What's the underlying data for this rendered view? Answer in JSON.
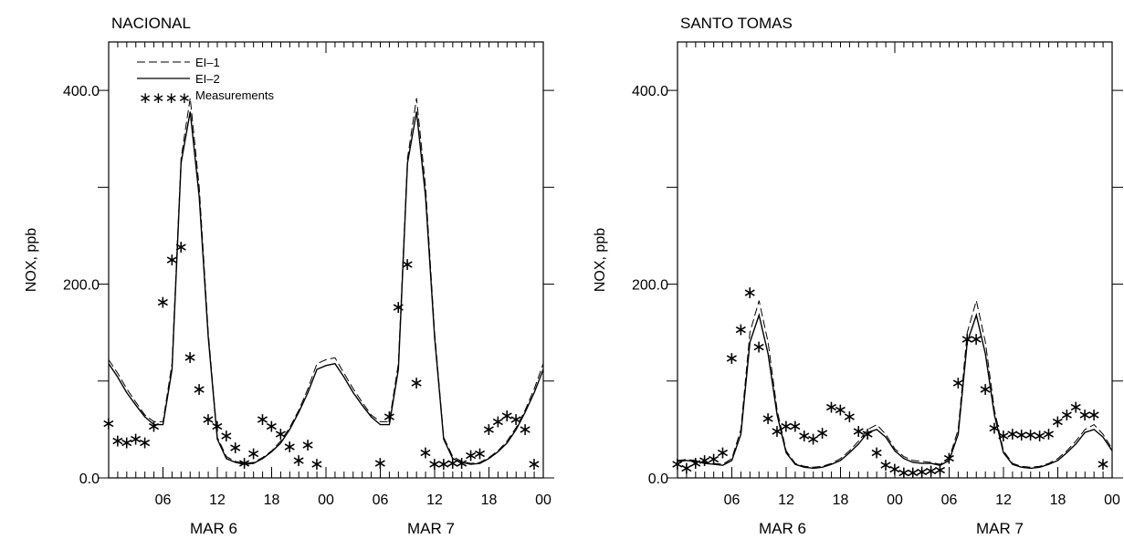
{
  "chart_data": [
    {
      "type": "line",
      "title": "NACIONAL",
      "ylabel": "NOX, ppb",
      "xlabel": "",
      "ylim": [
        0,
        450
      ],
      "yticks": [
        0,
        200,
        400
      ],
      "ytick_labels": [
        "0.0",
        "200.0",
        "400.0"
      ],
      "xlim": [
        0,
        48
      ],
      "xtick_positions": [
        6,
        12,
        18,
        24,
        30,
        36,
        42,
        48
      ],
      "xtick_labels": [
        "06",
        "12",
        "18",
        "00",
        "06",
        "12",
        "18",
        "00"
      ],
      "day_labels": [
        {
          "x": 12,
          "text": "MAR  6"
        },
        {
          "x": 36,
          "text": "MAR  7"
        }
      ],
      "legend": {
        "position": "top-left",
        "entries": [
          "EI–1",
          "EI–2",
          "Measurements"
        ],
        "marker_text": "∗∗∗∗"
      },
      "series": [
        {
          "name": "EI–1",
          "style": "dashed",
          "x": [
            0,
            1,
            2,
            3,
            4,
            5,
            6,
            7,
            8,
            9,
            10,
            11,
            12,
            13,
            14,
            15,
            16,
            17,
            18,
            19,
            20,
            21,
            22,
            23,
            24,
            25,
            26,
            27,
            28,
            29,
            30,
            31,
            32,
            33,
            34,
            35,
            36,
            37,
            38,
            39,
            40,
            41,
            42,
            43,
            44,
            45,
            46,
            47,
            48
          ],
          "y": [
            122,
            108,
            92,
            78,
            65,
            58,
            58,
            118,
            330,
            392,
            300,
            150,
            42,
            22,
            17,
            15,
            16,
            21,
            28,
            38,
            52,
            70,
            92,
            118,
            122,
            124,
            108,
            92,
            78,
            65,
            58,
            58,
            118,
            330,
            392,
            300,
            150,
            42,
            22,
            17,
            15,
            16,
            21,
            28,
            38,
            52,
            70,
            92,
            118
          ]
        },
        {
          "name": "EI–2",
          "style": "solid",
          "x": [
            0,
            1,
            2,
            3,
            4,
            5,
            6,
            7,
            8,
            9,
            10,
            11,
            12,
            13,
            14,
            15,
            16,
            17,
            18,
            19,
            20,
            21,
            22,
            23,
            24,
            25,
            26,
            27,
            28,
            29,
            30,
            31,
            32,
            33,
            34,
            35,
            36,
            37,
            38,
            39,
            40,
            41,
            42,
            43,
            44,
            45,
            46,
            47,
            48
          ],
          "y": [
            118,
            104,
            88,
            75,
            63,
            55,
            55,
            112,
            325,
            378,
            290,
            145,
            40,
            20,
            16,
            14,
            15,
            20,
            27,
            36,
            50,
            68,
            88,
            112,
            116,
            118,
            104,
            88,
            75,
            63,
            55,
            55,
            112,
            325,
            378,
            290,
            145,
            40,
            20,
            16,
            14,
            15,
            20,
            27,
            36,
            50,
            68,
            88,
            112
          ]
        },
        {
          "name": "Measurements",
          "style": "markers",
          "x": [
            0,
            1,
            2,
            3,
            4,
            5,
            6,
            7,
            8,
            9,
            10,
            11,
            12,
            13,
            14,
            15,
            16,
            17,
            18,
            19,
            20,
            21,
            22,
            23,
            30,
            31,
            32,
            33,
            34,
            35,
            36,
            37,
            38,
            39,
            40,
            41,
            42,
            43,
            44,
            45,
            46,
            47
          ],
          "y": [
            58,
            40,
            38,
            42,
            38,
            55,
            183,
            227,
            240,
            126,
            93,
            62,
            55,
            45,
            33,
            17,
            27,
            62,
            55,
            47,
            34,
            20,
            36,
            16,
            17,
            65,
            178,
            222,
            100,
            28,
            16,
            16,
            17,
            17,
            25,
            27,
            52,
            60,
            66,
            62,
            52,
            16
          ]
        }
      ]
    },
    {
      "type": "line",
      "title": "SANTO TOMAS",
      "ylabel": "NOX, ppb",
      "xlabel": "",
      "ylim": [
        0,
        450
      ],
      "yticks": [
        0,
        200,
        400
      ],
      "ytick_labels": [
        "0.0",
        "200.0",
        "400.0"
      ],
      "xlim": [
        0,
        48
      ],
      "xtick_positions": [
        6,
        12,
        18,
        24,
        30,
        36,
        42,
        48
      ],
      "xtick_labels": [
        "06",
        "12",
        "18",
        "00",
        "06",
        "12",
        "18",
        "00"
      ],
      "day_labels": [
        {
          "x": 12,
          "text": "MAR  6"
        },
        {
          "x": 36,
          "text": "MAR  7"
        }
      ],
      "series": [
        {
          "name": "EI–1",
          "style": "dashed",
          "x": [
            0,
            1,
            2,
            3,
            4,
            5,
            6,
            7,
            8,
            9,
            10,
            11,
            12,
            13,
            14,
            15,
            16,
            17,
            18,
            19,
            20,
            21,
            22,
            23,
            24,
            25,
            26,
            27,
            28,
            29,
            30,
            31,
            32,
            33,
            34,
            35,
            36,
            37,
            38,
            39,
            40,
            41,
            42,
            43,
            44,
            45,
            46,
            47,
            48
          ],
          "y": [
            18,
            19,
            18,
            16,
            15,
            14,
            20,
            50,
            150,
            183,
            140,
            70,
            28,
            15,
            12,
            11,
            12,
            15,
            20,
            28,
            38,
            50,
            55,
            45,
            30,
            22,
            18,
            17,
            16,
            14,
            20,
            50,
            150,
            183,
            140,
            70,
            28,
            15,
            12,
            11,
            12,
            15,
            20,
            28,
            38,
            50,
            55,
            45,
            30
          ]
        },
        {
          "name": "EI–2",
          "style": "solid",
          "x": [
            0,
            1,
            2,
            3,
            4,
            5,
            6,
            7,
            8,
            9,
            10,
            11,
            12,
            13,
            14,
            15,
            16,
            17,
            18,
            19,
            20,
            21,
            22,
            23,
            24,
            25,
            26,
            27,
            28,
            29,
            30,
            31,
            32,
            33,
            34,
            35,
            36,
            37,
            38,
            39,
            40,
            41,
            42,
            43,
            44,
            45,
            46,
            47,
            48
          ],
          "y": [
            17,
            18,
            17,
            15,
            14,
            13,
            18,
            45,
            140,
            168,
            128,
            65,
            26,
            14,
            11,
            10,
            11,
            14,
            18,
            26,
            35,
            47,
            50,
            42,
            28,
            20,
            16,
            15,
            15,
            13,
            18,
            45,
            140,
            168,
            128,
            65,
            26,
            14,
            11,
            10,
            11,
            14,
            18,
            26,
            35,
            47,
            50,
            42,
            28
          ]
        },
        {
          "name": "Measurements",
          "style": "markers",
          "x": [
            0,
            1,
            2,
            3,
            4,
            5,
            6,
            7,
            8,
            9,
            10,
            11,
            12,
            13,
            14,
            15,
            16,
            17,
            18,
            19,
            20,
            21,
            22,
            23,
            24,
            25,
            26,
            27,
            28,
            29,
            30,
            31,
            32,
            33,
            34,
            35,
            36,
            37,
            38,
            39,
            40,
            41,
            42,
            43,
            44,
            45,
            46,
            47
          ],
          "y": [
            16,
            12,
            17,
            20,
            21,
            28,
            125,
            155,
            193,
            137,
            63,
            50,
            55,
            55,
            45,
            42,
            48,
            75,
            72,
            65,
            50,
            47,
            28,
            15,
            11,
            7,
            7,
            8,
            9,
            10,
            22,
            100,
            145,
            145,
            93,
            53,
            45,
            47,
            46,
            46,
            45,
            47,
            60,
            67,
            75,
            67,
            67,
            16
          ]
        }
      ]
    }
  ]
}
